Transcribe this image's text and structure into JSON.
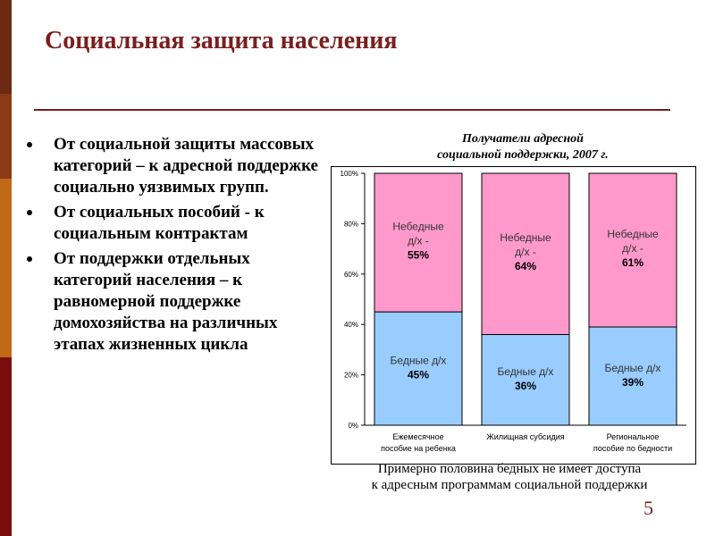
{
  "slide": {
    "title": "Социальная защита населения",
    "bullets": [
      "От социальной защиты массовых категорий – к адресной поддержке социально уязвимых групп.",
      "От социальных пособий - к социальным контрактам",
      "От поддержки отдельных категорий населения – к равномерной поддержке домохозяйства на различных этапах жизненных цикла"
    ],
    "chart_title_line1": "Получатели адресной",
    "chart_title_line2": "социальной поддержки, 2007 г.",
    "footnote_line1": "Примерно половина бедных не имеет доступа",
    "footnote_line2": "к адресным программам социальной поддержки",
    "page_number": "5"
  },
  "chart_data": {
    "type": "bar",
    "stacked": true,
    "percent_stacked": true,
    "categories": [
      [
        "Ежемесячное",
        "пособие на ребенка"
      ],
      [
        "Жилищная субсидия"
      ],
      [
        "Региональное",
        "пособие по бедности"
      ]
    ],
    "series": [
      {
        "name": "Бедные д/х",
        "values": [
          45,
          36,
          39
        ],
        "color": "#99ccff",
        "labels": [
          "Бедные д/х",
          "Бедные д/х",
          "Бедные д/х"
        ]
      },
      {
        "name": "Небедные д/х",
        "values": [
          55,
          64,
          61
        ],
        "color": "#ff99cc",
        "labels": [
          "Небедные д/х -",
          "Небедные д/х -",
          "Небедные д/х -"
        ]
      }
    ],
    "yticks": [
      "0%",
      "20%",
      "40%",
      "60%",
      "80%",
      "100%"
    ],
    "ylim": [
      0,
      100
    ],
    "grid": false,
    "legend": "none",
    "colors": {
      "border": "#000000",
      "axis_text": "#000000"
    }
  }
}
